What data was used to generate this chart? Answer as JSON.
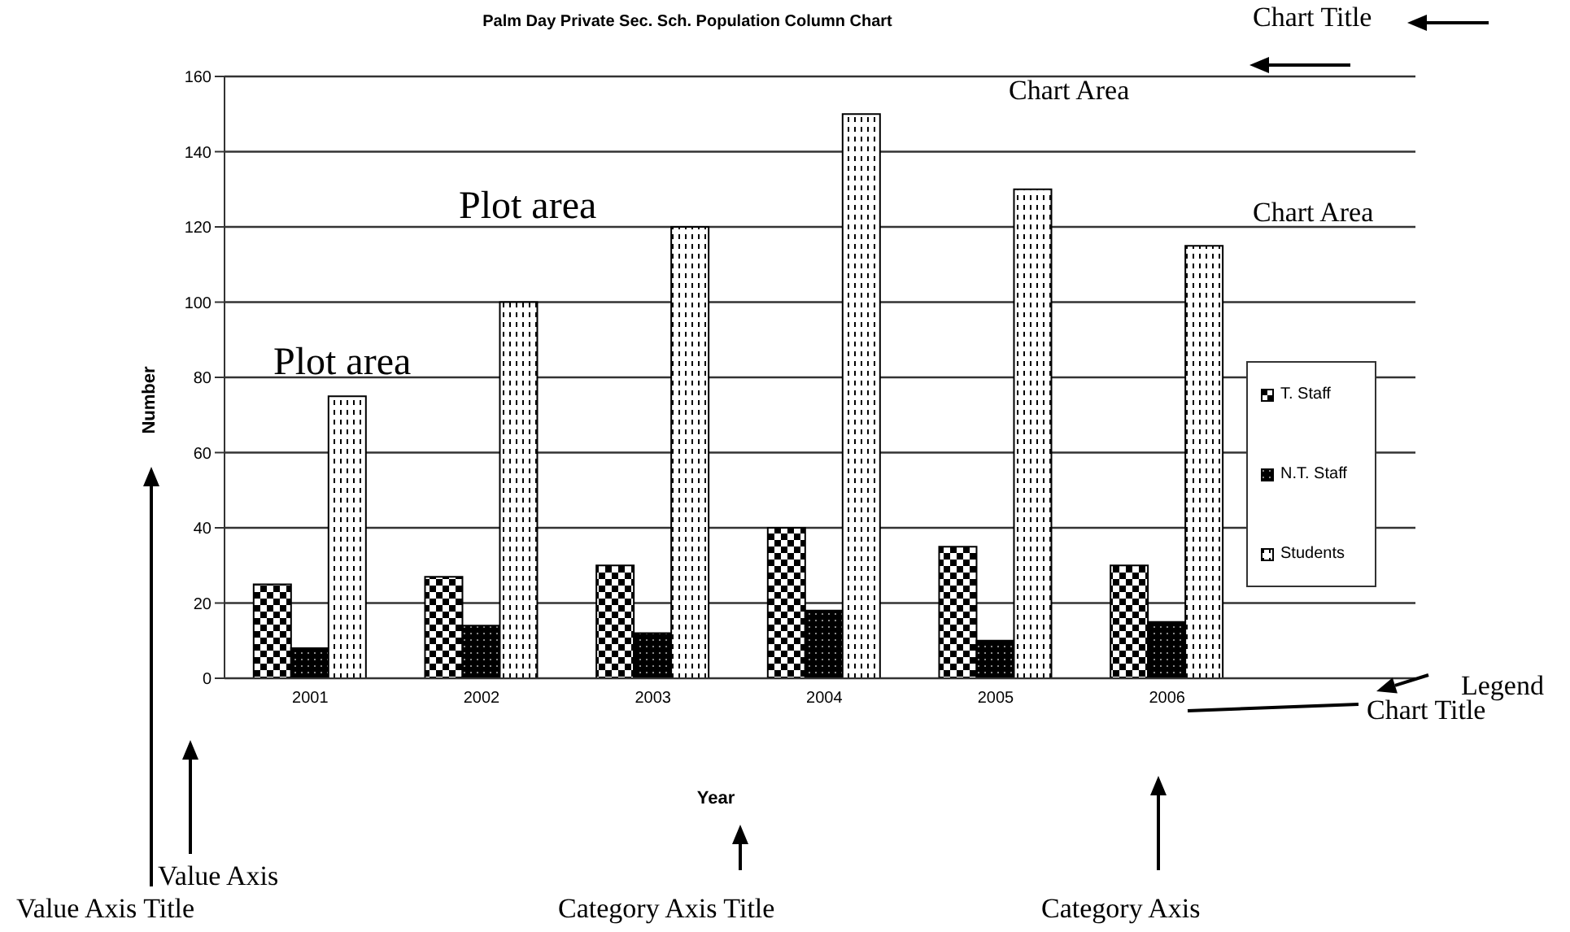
{
  "chart_data": {
    "type": "bar",
    "title": "Palm Day Private Sec. Sch. Population Column Chart",
    "xlabel": "Year",
    "ylabel": "Number",
    "categories": [
      "2001",
      "2002",
      "2003",
      "2004",
      "2005",
      "2006"
    ],
    "series": [
      {
        "name": "T. Staff",
        "color": "#000000",
        "values": [
          25,
          27,
          30,
          40,
          35,
          30
        ]
      },
      {
        "name": "N.T. Staff",
        "color": "#000000",
        "values": [
          8,
          14,
          12,
          18,
          10,
          15
        ]
      },
      {
        "name": "Students",
        "color": "#000000",
        "values": [
          75,
          100,
          120,
          150,
          130,
          115
        ]
      }
    ],
    "ylim": [
      0,
      160
    ],
    "yticks": [
      0,
      20,
      40,
      60,
      80,
      100,
      120,
      140,
      160
    ],
    "grid": "y",
    "legend": "right",
    "annotations": [
      "Chart Title",
      "Chart Area",
      "Plot area",
      "Plot area",
      "Chart Area",
      "Legend",
      "Chart Title",
      "Value Axis",
      "Value Axis Title",
      "Category Axis Title",
      "Category Axis"
    ]
  }
}
